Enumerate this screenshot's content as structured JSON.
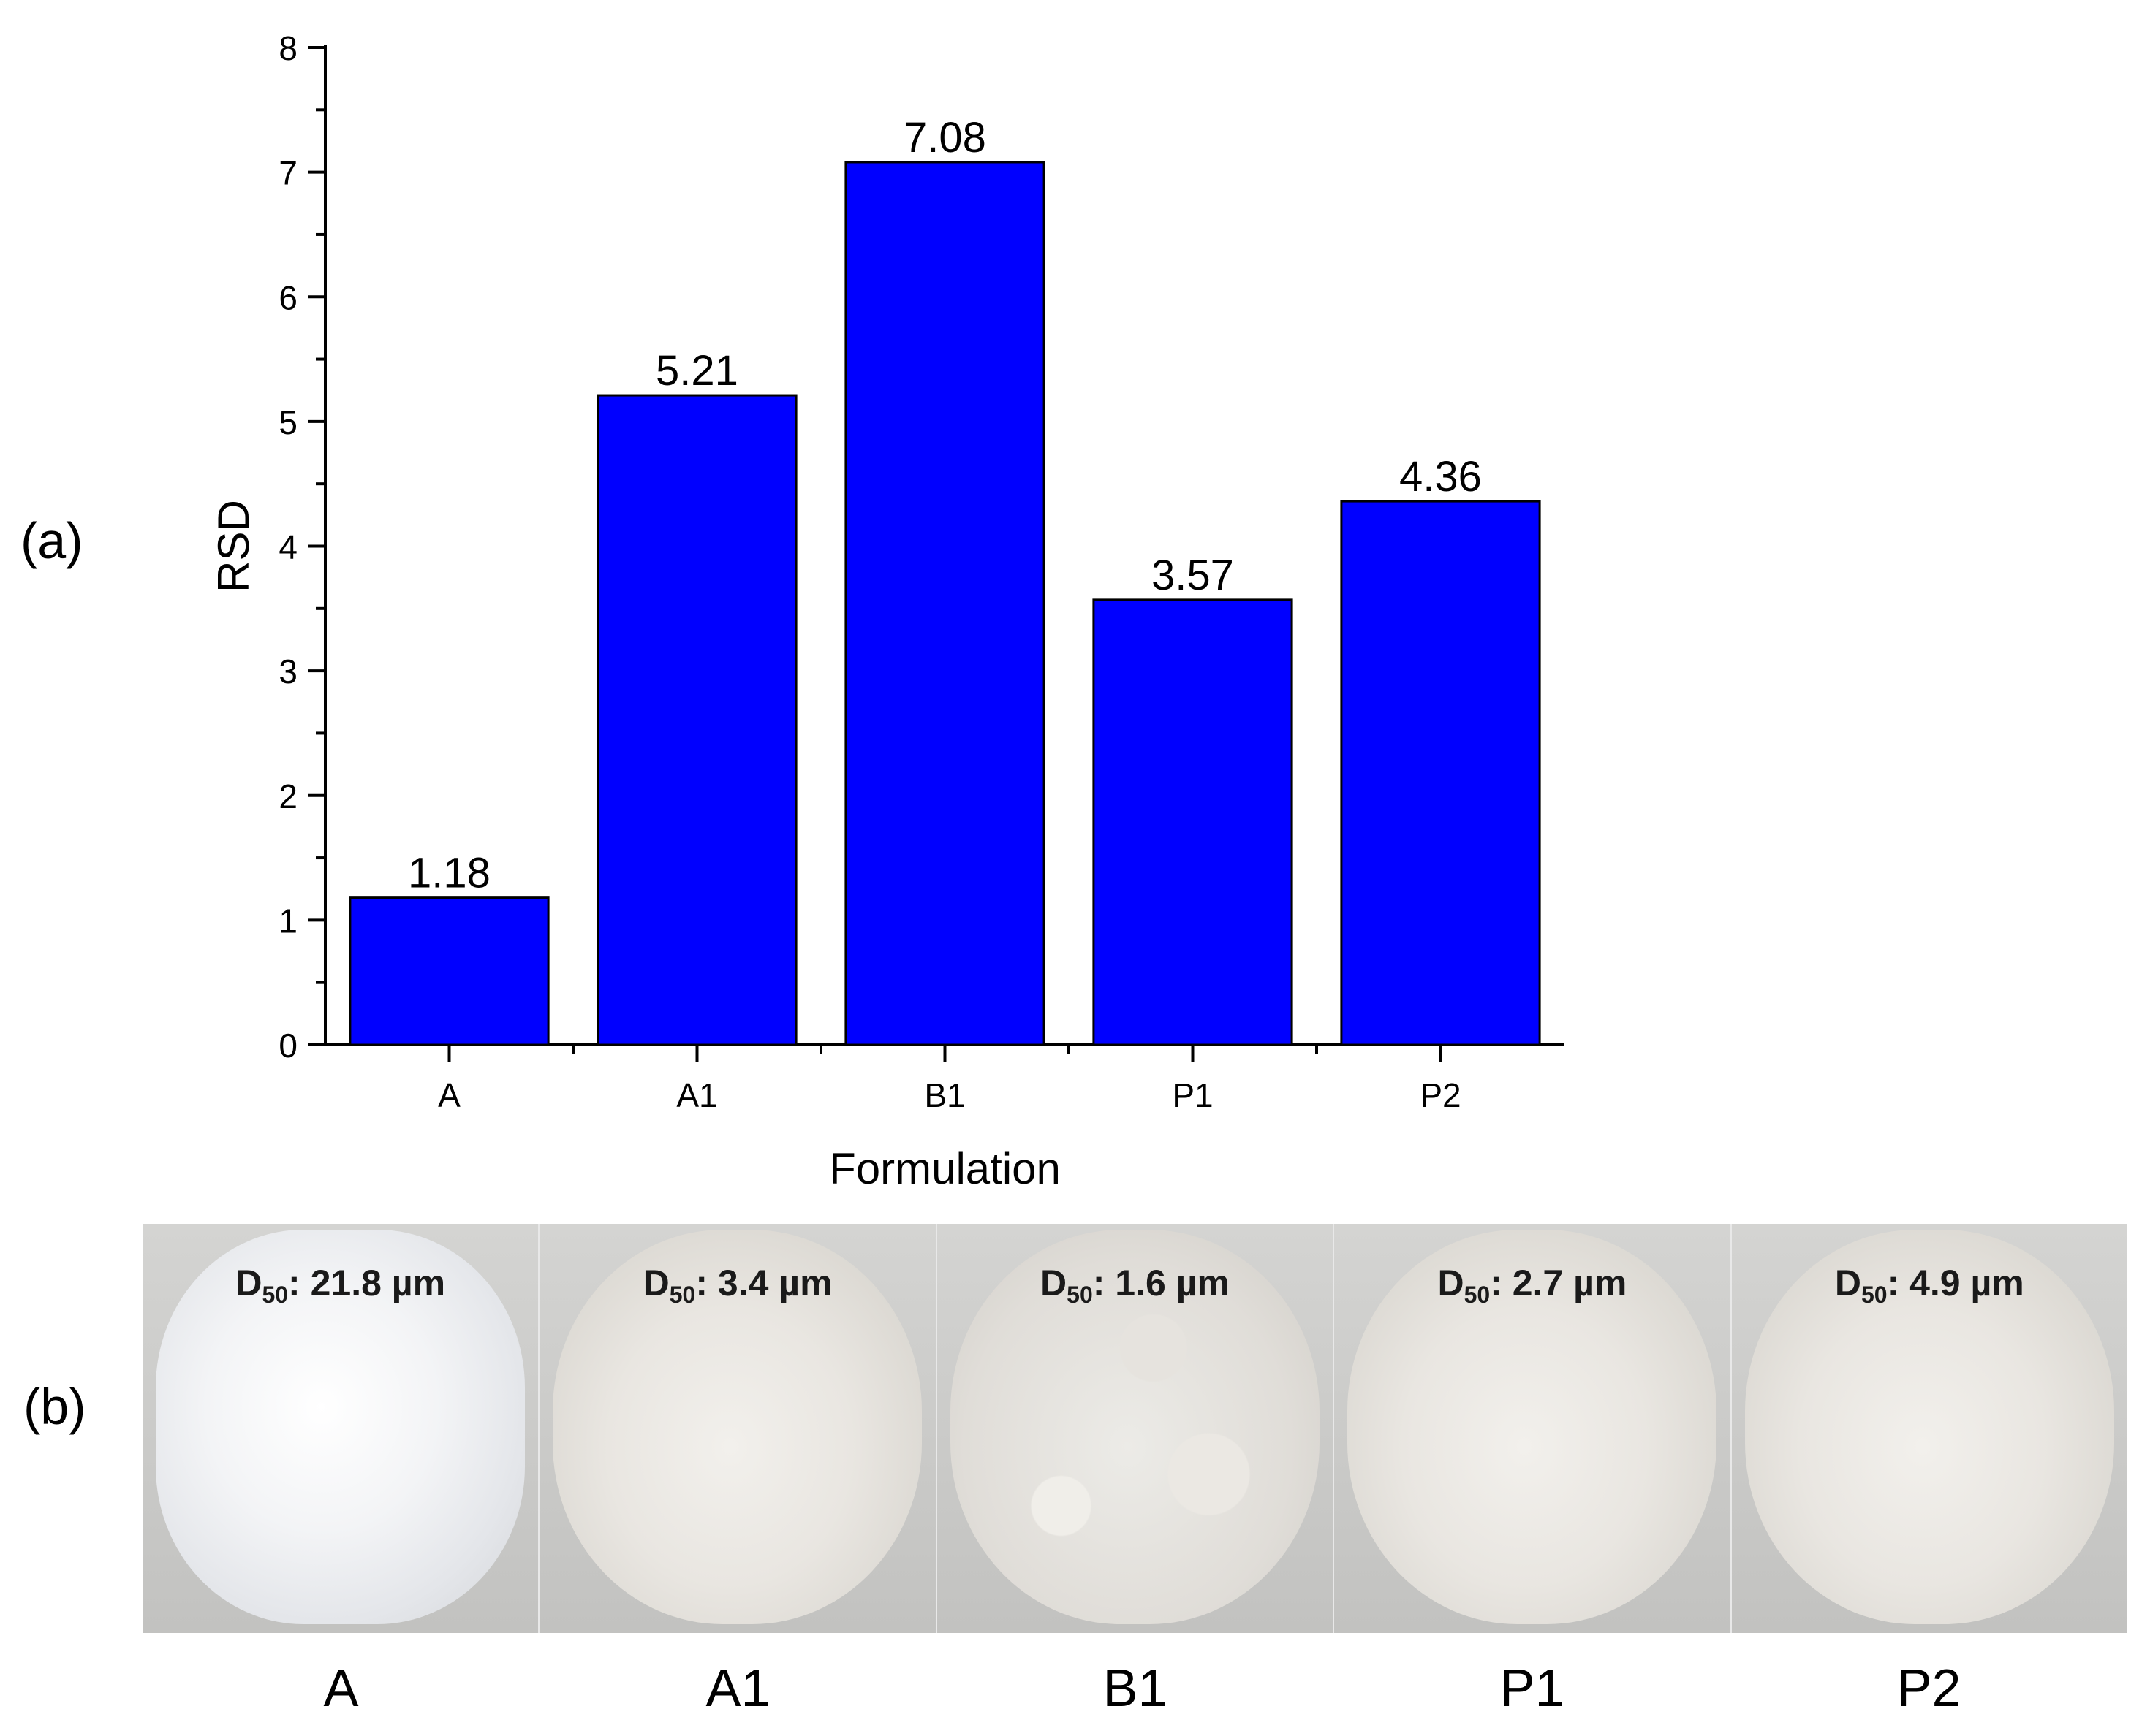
{
  "panel_labels": {
    "a": "(a)",
    "b": "(b)"
  },
  "chart_data": {
    "type": "bar",
    "categories": [
      "A",
      "A1",
      "B1",
      "P1",
      "P2"
    ],
    "values": [
      1.18,
      5.21,
      7.08,
      3.57,
      4.36
    ],
    "data_labels": [
      "1.18",
      "5.21",
      "7.08",
      "3.57",
      "4.36"
    ],
    "xlabel": "Formulation",
    "ylabel": "RSD",
    "ylim": [
      0,
      8
    ],
    "yticks": [
      0,
      1,
      2,
      3,
      4,
      5,
      6,
      7,
      8
    ],
    "bar_color": "#0000ff",
    "grid": false
  },
  "photos": [
    {
      "label": "A",
      "d50_prefix": "D",
      "d50_sub": "50",
      "d50_value": ": 21.8 µm"
    },
    {
      "label": "A1",
      "d50_prefix": "D",
      "d50_sub": "50",
      "d50_value": ": 3.4 µm"
    },
    {
      "label": "B1",
      "d50_prefix": "D",
      "d50_sub": "50",
      "d50_value": ": 1.6 µm"
    },
    {
      "label": "P1",
      "d50_prefix": "D",
      "d50_sub": "50",
      "d50_value": ": 2.7 µm"
    },
    {
      "label": "P2",
      "d50_prefix": "D",
      "d50_sub": "50",
      "d50_value": ": 4.9 µm"
    }
  ]
}
